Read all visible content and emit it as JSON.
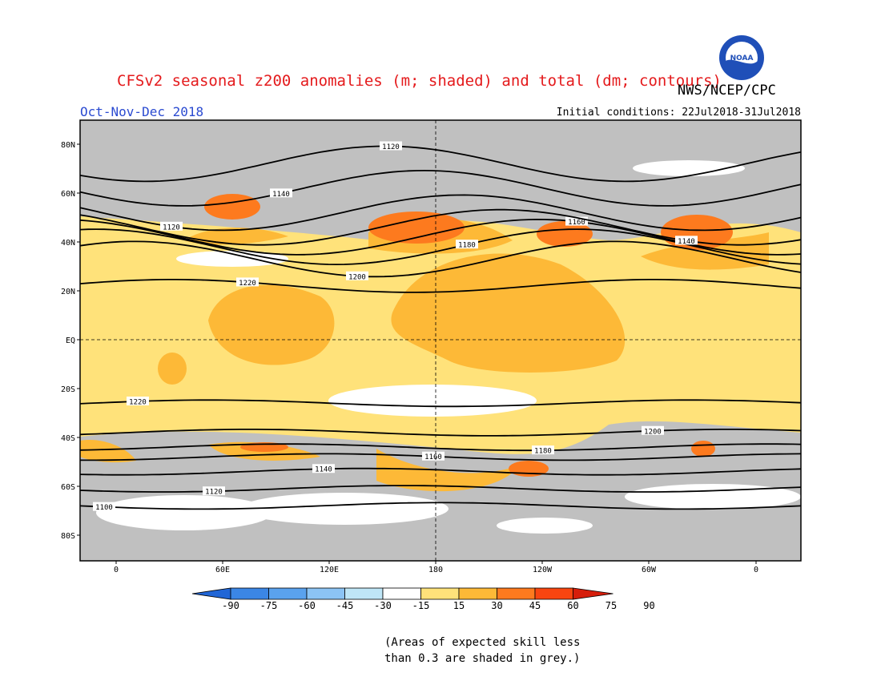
{
  "title": "CFSv2 seasonal z200 anomalies (m; shaded) and total (dm; contours)",
  "organization": "NWS/NCEP/CPC",
  "logo_text": "NOAA",
  "season": "Oct-Nov-Dec 2018",
  "initial_conditions": "Initial conditions: 22Jul2018-31Jul2018",
  "note_line1": "(Areas of expected skill less",
  "note_line2": "than 0.3 are shaded in grey.)",
  "colors": {
    "pos15_30": "#ffe27a",
    "pos30_45": "#fdb937",
    "pos45_60": "#fd7a1e",
    "pos60_75": "#f84510",
    "neutral": "#ffffff",
    "grey": "#c0c0c0"
  },
  "map": {
    "lat_labels": [
      "80N",
      "60N",
      "40N",
      "20N",
      "EQ",
      "20S",
      "40S",
      "60S",
      "80S"
    ],
    "lon_labels": [
      "0",
      "60E",
      "120E",
      "180",
      "120W",
      "60W",
      "0"
    ],
    "legend_labels": [
      "-90",
      "-75",
      "-60",
      "-45",
      "-30",
      "-15",
      "15",
      "30",
      "45",
      "60",
      "75",
      "90"
    ],
    "legend_colors": [
      "#2166d6",
      "#3b86e5",
      "#5aa2ee",
      "#8cc4f5",
      "#bfe6f7",
      "#ffffff",
      "#ffe27a",
      "#fdb937",
      "#fd7a1e",
      "#f84510",
      "#d61e0b"
    ],
    "contours": [
      {
        "label": "1100",
        "lat": -68
      },
      {
        "label": "1120",
        "lat": -61
      },
      {
        "label": "1140",
        "lat": -54
      },
      {
        "label": "1160",
        "lat": -48
      },
      {
        "label": "1180",
        "lat": -44
      },
      {
        "label": "1200",
        "lat": -38
      },
      {
        "label": "1220",
        "lat": -26
      },
      {
        "label": "1220",
        "lat": 22
      },
      {
        "label": "1200",
        "lat": 33
      },
      {
        "label": "1180",
        "lat": 38
      },
      {
        "label": "1160",
        "lat": 42
      },
      {
        "label": "1140",
        "lat": 46
      },
      {
        "label": "1120",
        "lat": 52
      },
      {
        "label": "1140",
        "lat": 62
      },
      {
        "label": "1120",
        "lat": 72
      }
    ]
  }
}
